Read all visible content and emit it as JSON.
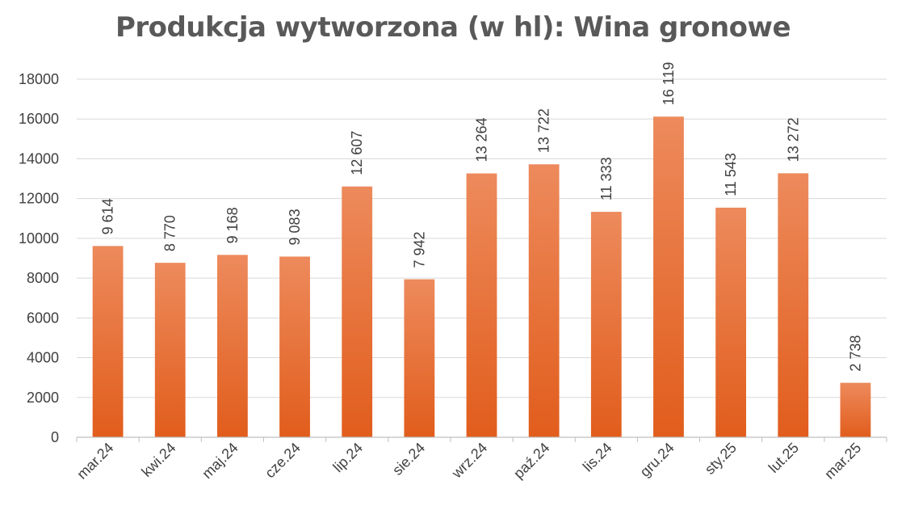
{
  "chart_data": {
    "type": "bar",
    "title": "Produkcja wytworzona (w hl): Wina gronowe",
    "xlabel": "",
    "ylabel": "",
    "categories": [
      "mar.24",
      "kwi.24",
      "maj.24",
      "cze.24",
      "lip.24",
      "sie.24",
      "wrz.24",
      "paź.24",
      "lis.24",
      "gru.24",
      "sty.25",
      "lut.25",
      "mar.25"
    ],
    "values": [
      9614,
      8770,
      9168,
      9083,
      12607,
      7942,
      13264,
      13722,
      11333,
      16119,
      11543,
      13272,
      2738
    ],
    "data_labels": [
      "9 614",
      "8 770",
      "9 168",
      "9 083",
      "12 607",
      "7 942",
      "13 264",
      "13 722",
      "11 333",
      "16 119",
      "11 543",
      "13 272",
      "2 738"
    ],
    "ylim": [
      0,
      18000
    ],
    "yticks": [
      "0",
      "2000",
      "4000",
      "6000",
      "8000",
      "10000",
      "12000",
      "14000",
      "16000",
      "18000"
    ],
    "grid": true,
    "legend": "none",
    "colors": {
      "bar_top": "#ed8a5c",
      "bar_bottom": "#e15d1c",
      "grid": "#d9d9d9",
      "axis": "#bfbfbf",
      "text": "#404040",
      "title": "#595959"
    }
  }
}
